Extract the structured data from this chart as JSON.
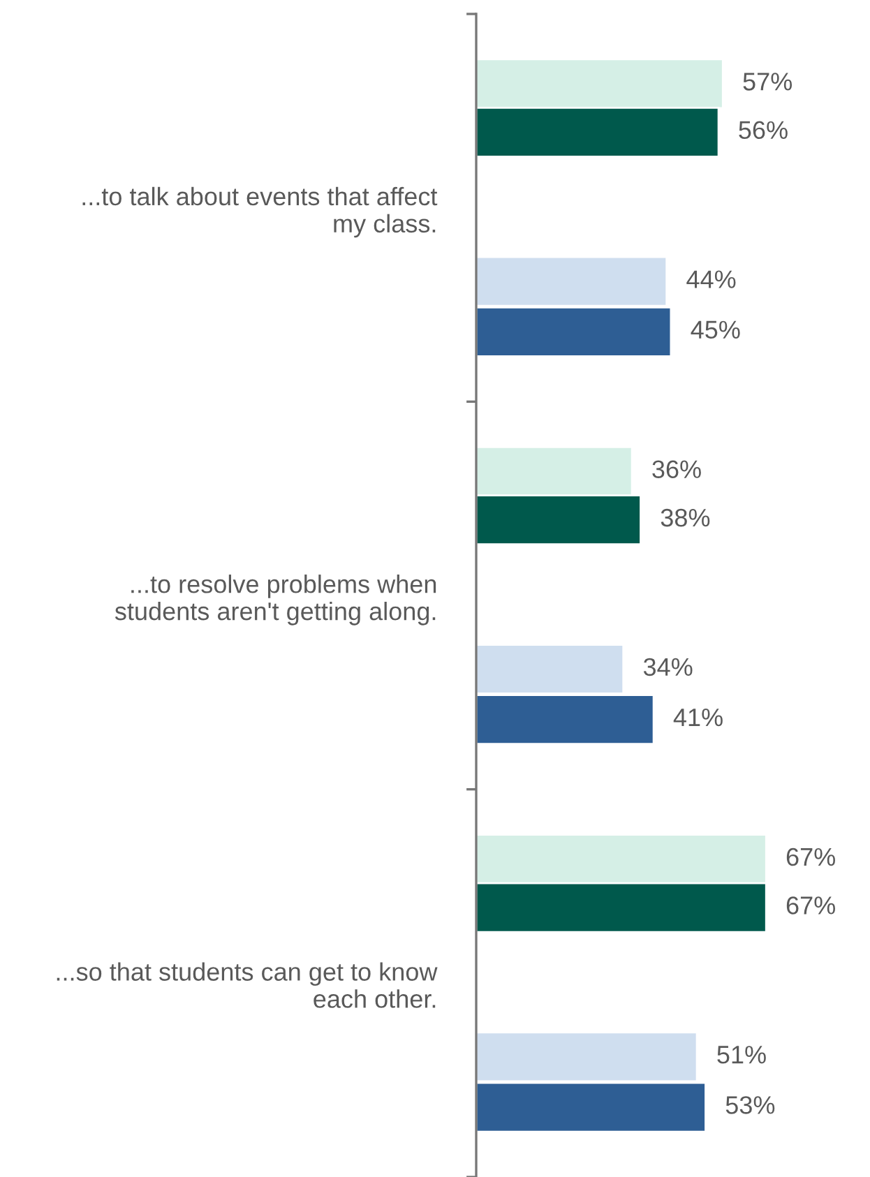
{
  "chart_data": {
    "type": "bar",
    "orientation": "horizontal",
    "categories": [
      "...to talk about events that affect\nmy class.",
      "...to resolve problems when\nstudents aren't getting along.",
      "...so that students can get to know\neach other."
    ],
    "series": [
      {
        "color": "#d5efe6",
        "values": [
          57,
          36,
          67
        ],
        "value_labels": [
          "57%",
          "36%",
          "67%"
        ]
      },
      {
        "color": "#00594c",
        "values": [
          56,
          38,
          67
        ],
        "value_labels": [
          "56%",
          "38%",
          "67%"
        ]
      },
      {
        "color": "#cfdeef",
        "values": [
          44,
          34,
          51
        ],
        "value_labels": [
          "44%",
          "34%",
          "51%"
        ]
      },
      {
        "color": "#2e5e94",
        "values": [
          45,
          41,
          53
        ],
        "value_labels": [
          "45%",
          "41%",
          "53%"
        ]
      }
    ],
    "grid": false,
    "legend": false,
    "tick_labels": "y"
  }
}
